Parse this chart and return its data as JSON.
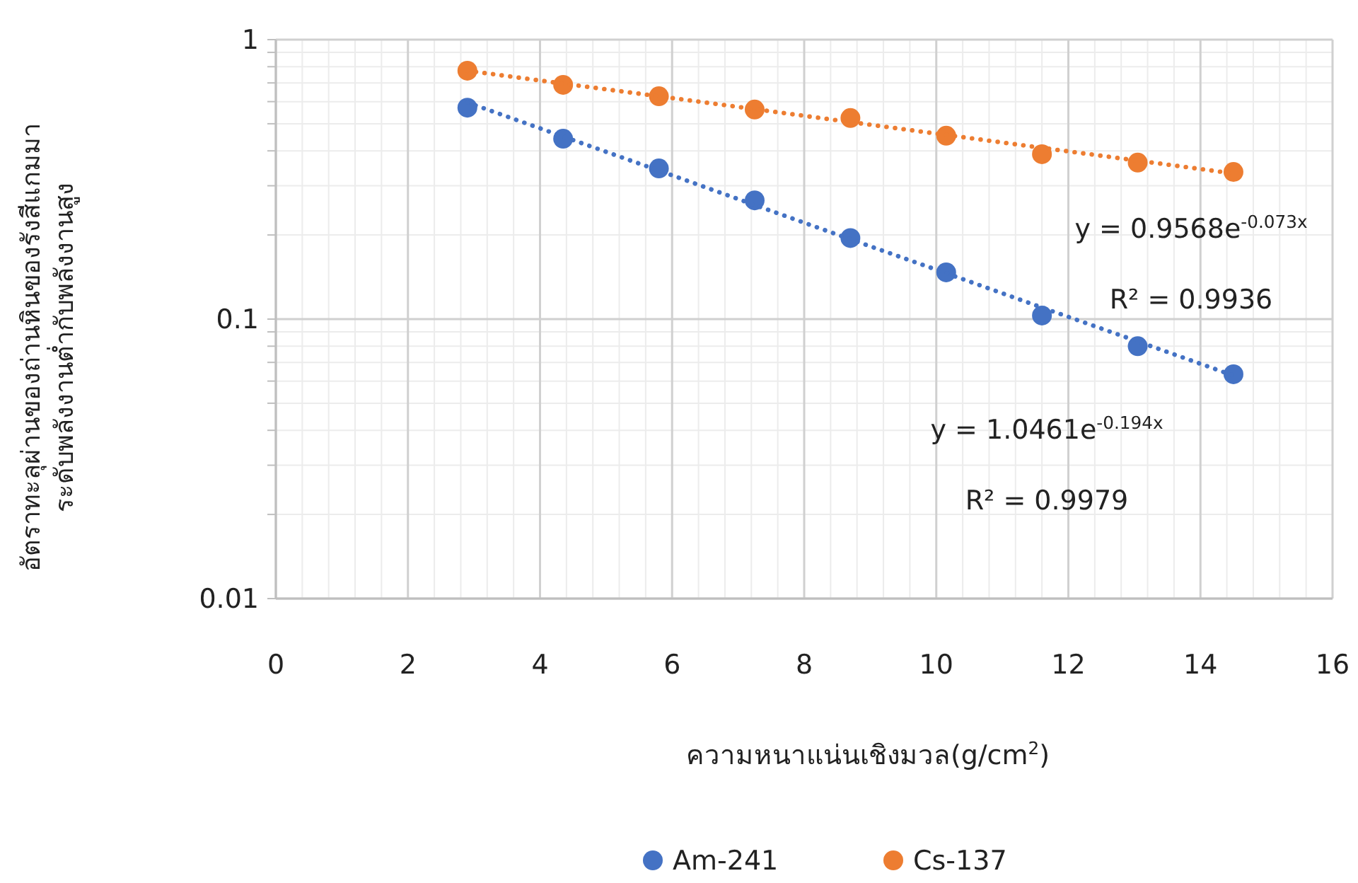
{
  "chart_data": {
    "type": "scatter",
    "xlabel": "ความหนาแน่นเชิงมวล(g/cm$^{2}$)",
    "ylabel": "อัตราทะลุผ่านของถ่านหินของรังสีแกมมา\nระดับพลังงานต่ำกับพลังงานสูง",
    "x": [
      2.9,
      4.35,
      5.8,
      7.25,
      8.7,
      10.15,
      11.6,
      13.05,
      14.5
    ],
    "series": [
      {
        "name": "Am-241",
        "color": "#4472c4",
        "values": [
          0.571,
          0.442,
          0.346,
          0.266,
          0.195,
          0.147,
          0.103,
          0.08,
          0.0635
        ]
      },
      {
        "name": "Cs-137",
        "color": "#ed7d31",
        "values": [
          0.774,
          0.689,
          0.627,
          0.562,
          0.524,
          0.453,
          0.389,
          0.363,
          0.336
        ]
      },
      {
        "type": "line",
        "color": "#4472c4",
        "values": [
          0.596,
          0.45,
          0.34,
          0.256,
          0.193,
          0.146,
          0.11,
          0.0832,
          0.0628
        ],
        "line_style": "dotted",
        "marker": "none"
      },
      {
        "type": "line",
        "color": "#ed7d31",
        "values": [
          0.774,
          0.696,
          0.627,
          0.564,
          0.507,
          0.456,
          0.41,
          0.369,
          0.332
        ],
        "line_style": "dotted",
        "marker": "none"
      }
    ],
    "annotations": [
      "y = 0.9568e$^{-0.073x}$",
      "R² = 0.9936",
      "y = 1.0461e$^{-0.194x}$",
      "R² = 0.9979"
    ],
    "xlim": [
      0,
      16
    ],
    "xticks": [
      0,
      2,
      4,
      6,
      8,
      10,
      12,
      14,
      16
    ],
    "ylim": [
      0.01,
      1
    ],
    "yticks": [
      0.01,
      0.1,
      1
    ],
    "log": "y",
    "grid": true,
    "marker": "circle",
    "legend": "bottom"
  }
}
